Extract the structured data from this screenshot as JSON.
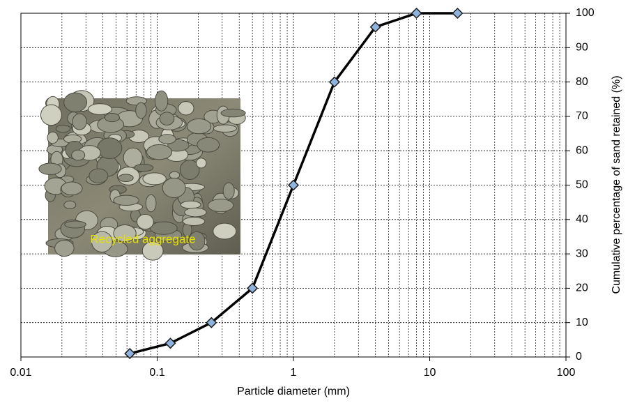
{
  "chart_data": {
    "type": "line",
    "x_label": "Particle diameter (mm)",
    "y_label": "Cumulative percentage of sand retained (%)",
    "x": [
      0.063,
      0.125,
      0.25,
      0.5,
      1,
      2,
      4,
      8,
      16
    ],
    "series": [
      {
        "name": "Recycled aggregate",
        "color": "#000000",
        "marker_color": "#8fb3dc",
        "values": [
          1,
          4,
          10,
          20,
          50,
          80,
          96,
          100,
          100
        ]
      }
    ],
    "xlim": [
      0.01,
      100
    ],
    "xticks": [
      0.01,
      0.1,
      1,
      10,
      100
    ],
    "xscale": "log",
    "ylim": [
      0,
      100
    ],
    "yticks": [
      0,
      10,
      20,
      30,
      40,
      50,
      60,
      70,
      80,
      90,
      100
    ],
    "y_axis_side": "right",
    "grid": true,
    "minor_grid": true,
    "inset_label": "Recycled aggregate"
  }
}
